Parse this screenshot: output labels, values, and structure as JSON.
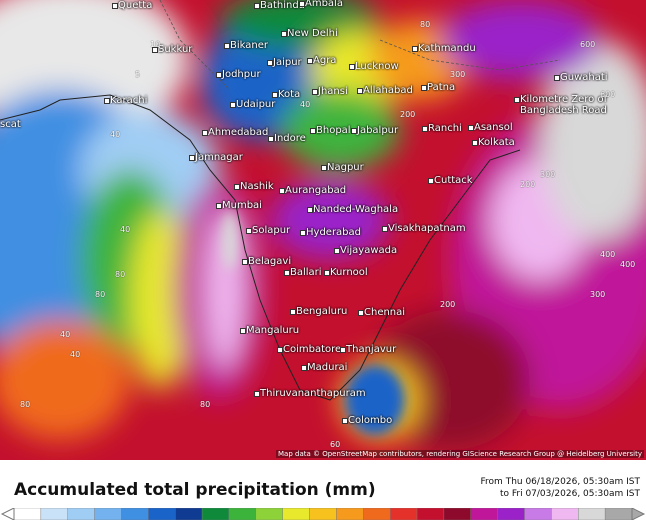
{
  "map": {
    "cities": [
      "Quetta",
      "Bathinda",
      "Ambala",
      "New Delhi",
      "Bikaner",
      "Sukkur",
      "Jaipur",
      "Agra",
      "Lucknow",
      "Kathmandu",
      "Jodhpur",
      "Karachi",
      "Kota",
      "Jhansi",
      "Allahabad",
      "Patna",
      "Guwahati",
      "Udaipur",
      "Kilometre Zero of Bangladesh Road",
      "scat",
      "Ahmedabad",
      "Indore",
      "Bhopal",
      "Jabalpur",
      "Ranchi",
      "Asansol",
      "Kolkata",
      "Jamnagar",
      "Nagpur",
      "Cuttack",
      "Nashik",
      "Aurangabad",
      "Mumbai",
      "Nanded-Waghala",
      "Visakhapatnam",
      "Solapur",
      "Hyderabad",
      "Vijayawada",
      "Belagavi",
      "Ballari",
      "Kurnool",
      "Bengaluru",
      "Chennai",
      "Mangaluru",
      "Coimbatore",
      "Thanjavur",
      "Madurai",
      "Thiruvananthapuram",
      "Colombo"
    ],
    "contour_labels": [
      "5",
      "10",
      "40",
      "80",
      "40",
      "80",
      "200",
      "300",
      "400",
      "600",
      "80",
      "40",
      "200",
      "300",
      "40",
      "80",
      "600",
      "300",
      "400",
      "40",
      "80",
      "200",
      "60"
    ],
    "attribution": "Map data © OpenStreetMap contributors, rendering GIScience Research Group @ Heidelberg University"
  },
  "legend": {
    "title": "Accumulated total precipitation (mm)",
    "from": "From Thu 06/18/2026, 05:30am IST",
    "to": "to Fri 07/03/2026, 05:30am IST",
    "colors": [
      "#ffffff",
      "#c9e2f8",
      "#a0cdf4",
      "#73b2ee",
      "#3f8fe2",
      "#1a63c8",
      "#103b93",
      "#0e8a3a",
      "#3cb43c",
      "#8ed23a",
      "#e8e82c",
      "#f7c21e",
      "#f59a1c",
      "#f06a1e",
      "#e4322a",
      "#c3102e",
      "#8e0a2c",
      "#c0169a",
      "#9a22c8",
      "#c87ae6",
      "#f0b8f0",
      "#d8d8d8",
      "#a8a8a8"
    ]
  }
}
